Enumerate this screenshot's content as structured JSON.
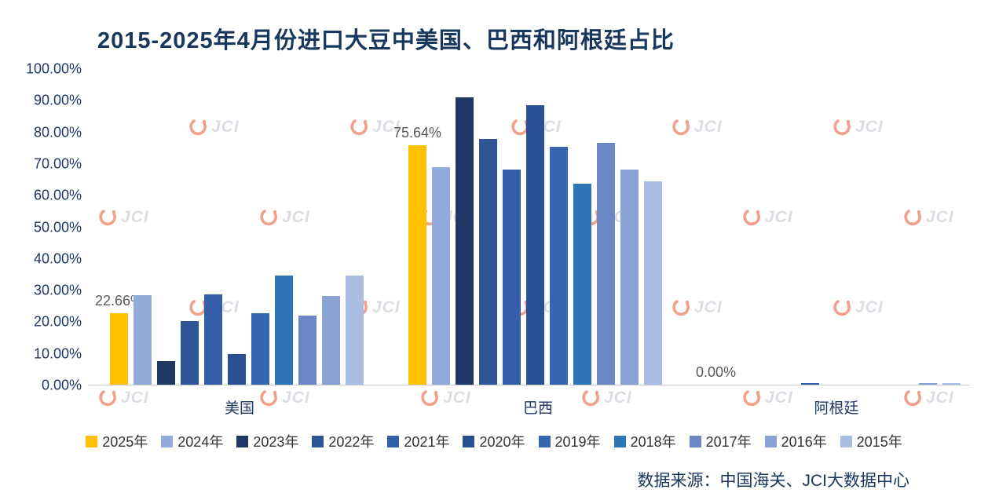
{
  "page": {
    "title": "2015-2025年4月份进口大豆中美国、巴西和阿根廷占比",
    "source": "数据来源：中国海关、JCI大数据中心",
    "watermark_text": "JCI"
  },
  "colors": {
    "title_text": "#17375D",
    "axis_text": "#1F3864",
    "legend_text": "#333333",
    "data_label_text": "#595959",
    "axis_line": "#C9C9C9",
    "watermark_swoosh": "#E8532A",
    "watermark_text": "#BDC3CE",
    "background": "#FFFFFF"
  },
  "chart_data": {
    "type": "bar",
    "title": "2015-2025年4月份进口大豆中美国、巴西和阿根廷占比",
    "categories": [
      "美国",
      "巴西",
      "阿根廷"
    ],
    "series": [
      {
        "name": "2025年",
        "color": "#FFC000",
        "values": [
          22.66,
          75.64,
          0.0
        ]
      },
      {
        "name": "2024年",
        "color": "#93ABDB",
        "values": [
          28.3,
          68.7,
          0.0
        ]
      },
      {
        "name": "2023年",
        "color": "#1F3864",
        "values": [
          7.4,
          90.8,
          0.0
        ]
      },
      {
        "name": "2022年",
        "color": "#2F5597",
        "values": [
          20.1,
          77.7,
          0.0
        ]
      },
      {
        "name": "2021年",
        "color": "#345FA8",
        "values": [
          28.5,
          68.0,
          0.5
        ]
      },
      {
        "name": "2020年",
        "color": "#2A4F93",
        "values": [
          9.7,
          88.3,
          0.0
        ]
      },
      {
        "name": "2019年",
        "color": "#3667B0",
        "values": [
          22.6,
          75.2,
          0.0
        ]
      },
      {
        "name": "2018年",
        "color": "#2E75B6",
        "values": [
          34.5,
          63.5,
          0.0
        ]
      },
      {
        "name": "2017年",
        "color": "#6D87C4",
        "values": [
          21.8,
          76.4,
          0.0
        ]
      },
      {
        "name": "2016年",
        "color": "#8BA3D4",
        "values": [
          28.0,
          68.0,
          0.4
        ]
      },
      {
        "name": "2015年",
        "color": "#A9BCE2",
        "values": [
          34.5,
          64.3,
          0.4
        ]
      }
    ],
    "data_labels": [
      {
        "category": "美国",
        "series": "2025年",
        "text": "22.66%"
      },
      {
        "category": "巴西",
        "series": "2025年",
        "text": "75.64%"
      },
      {
        "category": "阿根廷",
        "series": "2025年",
        "text": "0.00%"
      }
    ],
    "y_ticks": [
      "100.00%",
      "90.00%",
      "80.00%",
      "70.00%",
      "60.00%",
      "50.00%",
      "40.00%",
      "30.00%",
      "20.00%",
      "10.00%",
      "0.00%"
    ],
    "ylim": [
      0,
      100
    ],
    "grid": false,
    "legend_position": "bottom"
  }
}
